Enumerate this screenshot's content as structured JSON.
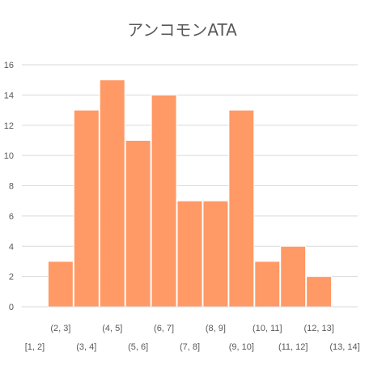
{
  "chart_data": {
    "type": "bar",
    "title": "アンコモンATA",
    "categories": [
      "[1, 2]",
      "(2, 3]",
      "(3, 4]",
      "(4, 5]",
      "(5, 6]",
      "(6, 7]",
      "(7, 8]",
      "(8, 9]",
      "(9, 10]",
      "(10, 11]",
      "(11, 12]",
      "(12, 13]",
      "(13, 14]"
    ],
    "values": [
      0,
      3,
      13,
      15,
      11,
      14,
      7,
      7,
      13,
      3,
      4,
      2,
      0
    ],
    "xlabel": "",
    "ylabel": "",
    "ylim": [
      0,
      16
    ],
    "yticks": [
      "0",
      "2",
      "4",
      "6",
      "8",
      "10",
      "12",
      "14",
      "16"
    ],
    "grid": true,
    "legend": "none",
    "bar_color": "#FF9966",
    "grid_color": "#D9D9D9",
    "text_color": "#595959"
  }
}
